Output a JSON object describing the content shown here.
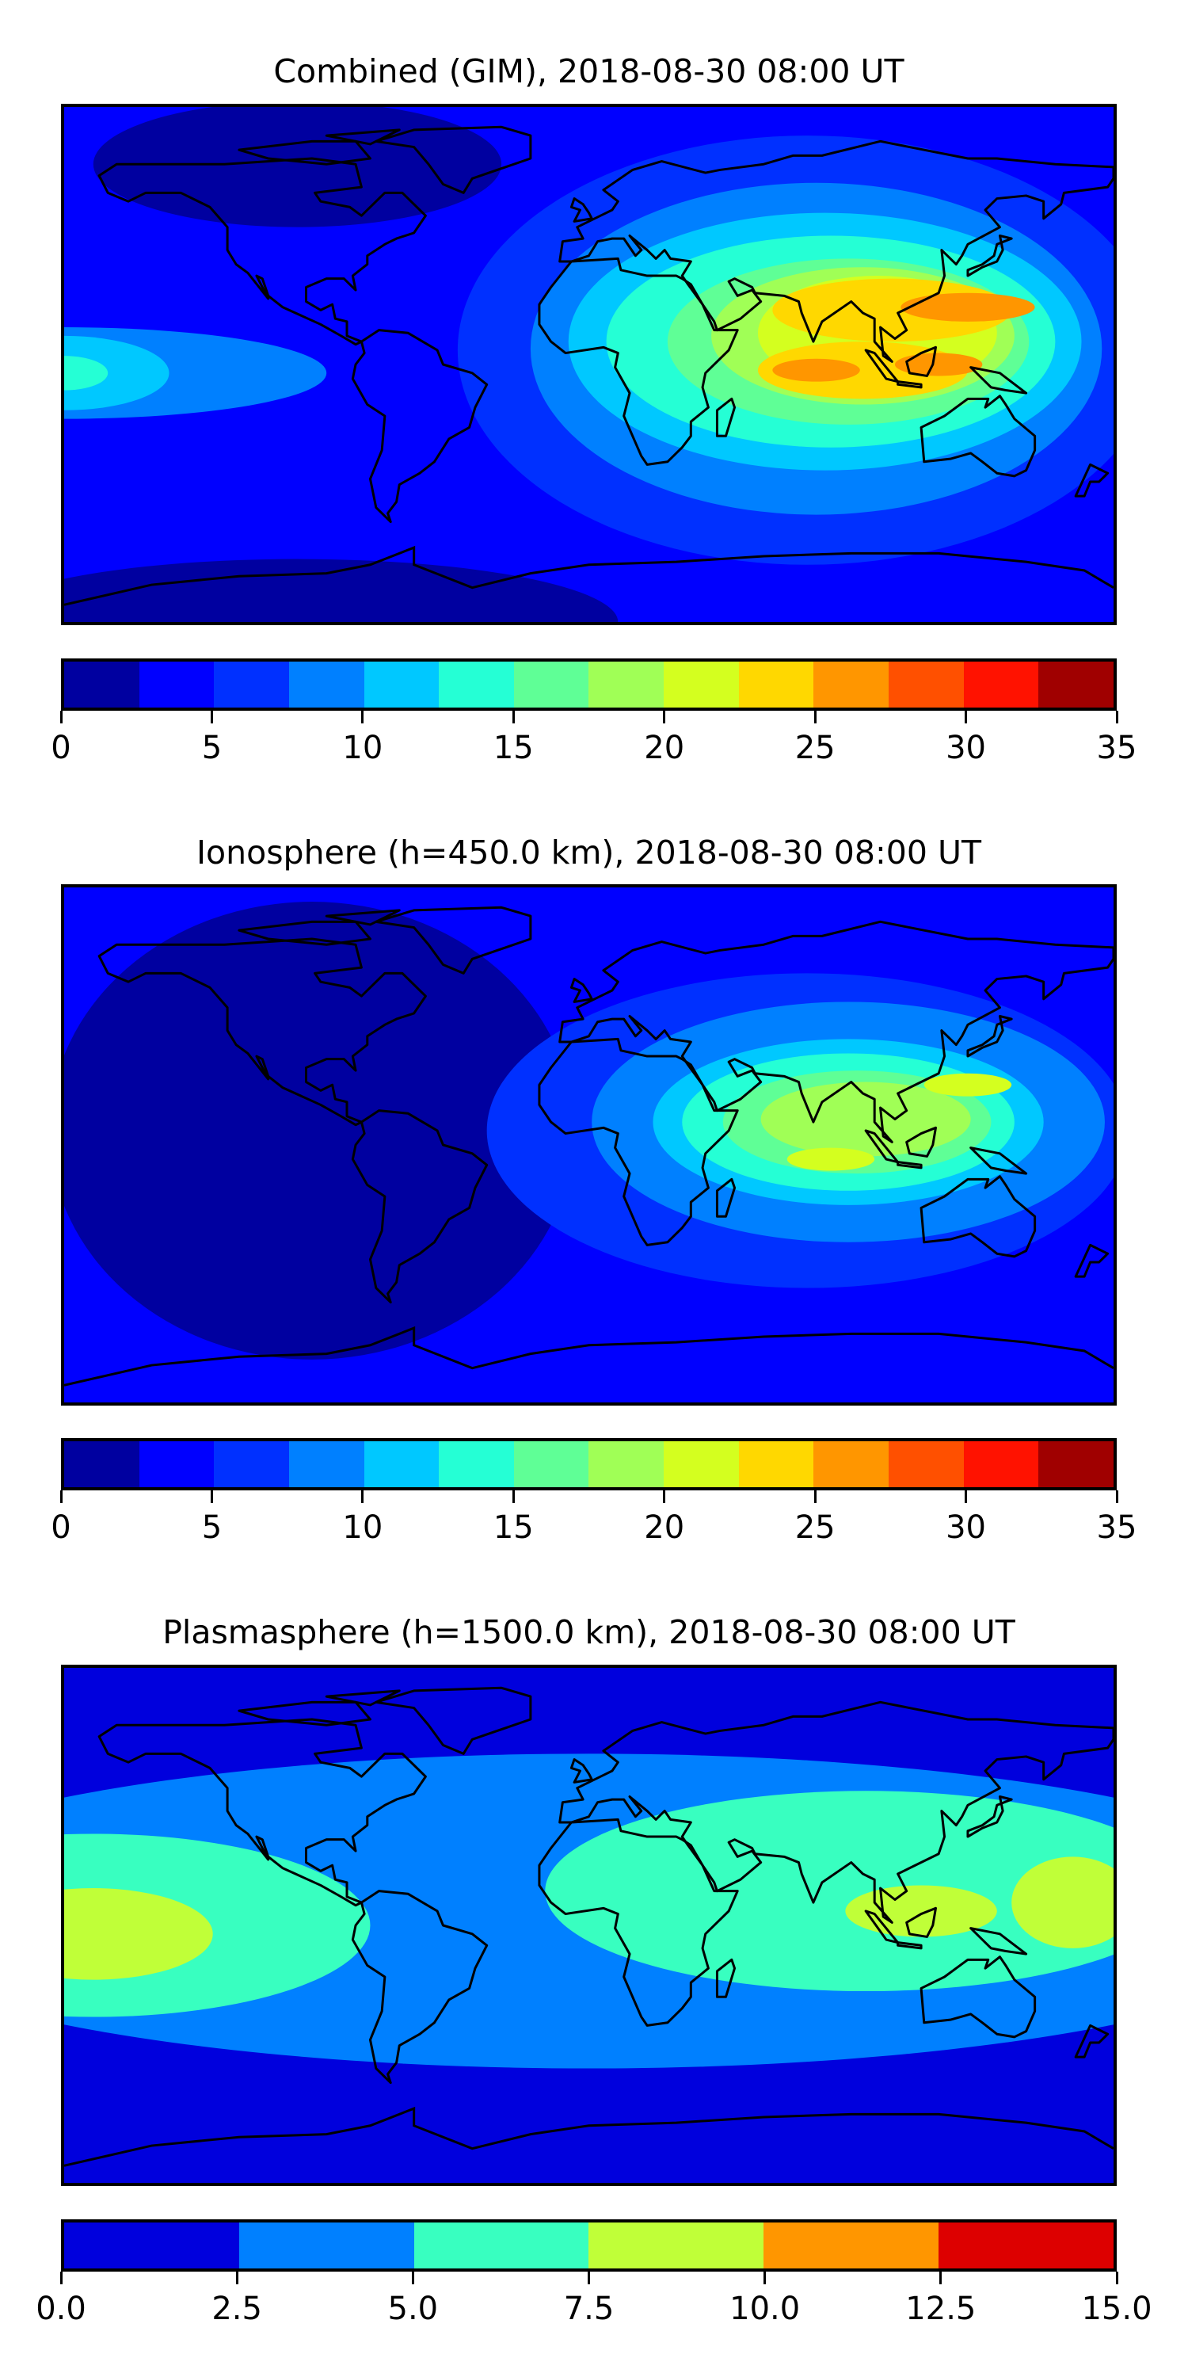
{
  "chart_data": [
    {
      "type": "heatmap",
      "title": "Combined (GIM), 2018-08-30 08:00 UT",
      "projection": "equirectangular",
      "xlim": [
        -180,
        180
      ],
      "ylim": [
        -90,
        90
      ],
      "levels": {
        "min": 0,
        "max": 35,
        "step": 2.5
      },
      "colors": [
        "#0000a0",
        "#0000ff",
        "#0030ff",
        "#0080ff",
        "#00c8ff",
        "#25ffd5",
        "#5fff96",
        "#a0ff56",
        "#d4ff1f",
        "#ffd800",
        "#ff9600",
        "#ff5000",
        "#ff1200",
        "#a00000"
      ],
      "ticks": [
        "0",
        "5",
        "10",
        "15",
        "20",
        "25",
        "30",
        "35"
      ],
      "tick_values": [
        0,
        5,
        10,
        15,
        20,
        25,
        30,
        35
      ],
      "background_level": 1,
      "features": [
        {
          "level": 0,
          "lon": -100,
          "lat": 70,
          "rlon": 70,
          "rlat": 22
        },
        {
          "level": 0,
          "lon": -100,
          "lat": -90,
          "rlon": 110,
          "rlat": 22
        },
        {
          "level": 2,
          "lon": 75,
          "lat": 5,
          "rlon": 120,
          "rlat": 75
        },
        {
          "level": 3,
          "lon": -180,
          "lat": -3,
          "rlon": 90,
          "rlat": 16
        },
        {
          "level": 4,
          "lon": -180,
          "lat": -3,
          "rlon": 36,
          "rlat": 13
        },
        {
          "level": 5,
          "lon": -180,
          "lat": -3,
          "rlon": 15,
          "rlat": 6
        },
        {
          "level": 3,
          "lon": 78,
          "lat": 5.5,
          "rlon": 98,
          "rlat": 58
        },
        {
          "level": 4,
          "lon": 81,
          "lat": 8,
          "rlon": 88,
          "rlat": 45
        },
        {
          "level": 5,
          "lon": 83,
          "lat": 8,
          "rlon": 77,
          "rlat": 37
        },
        {
          "level": 6,
          "lon": 89,
          "lat": 8,
          "rlon": 62,
          "rlat": 29
        },
        {
          "level": 7,
          "lon": 94,
          "lat": 10,
          "rlon": 52,
          "rlat": 24
        },
        {
          "level": 8,
          "lon": 99,
          "lat": 11,
          "rlon": 41,
          "rlat": 20
        },
        {
          "level": 9,
          "lon": 104,
          "lat": 19,
          "rlon": 41,
          "rlat": 11
        },
        {
          "level": 9,
          "lon": 94,
          "lat": -2,
          "rlon": 36,
          "rlat": 10
        },
        {
          "level": 10,
          "lon": 130,
          "lat": 20,
          "rlon": 23,
          "rlat": 5
        },
        {
          "level": 10,
          "lon": 78,
          "lat": -2,
          "rlon": 15,
          "rlat": 4
        },
        {
          "level": 10,
          "lon": 120,
          "lat": 0,
          "rlon": 15,
          "rlat": 4
        }
      ]
    },
    {
      "type": "heatmap",
      "title": "Ionosphere  (h=450.0 km), 2018-08-30 08:00 UT",
      "projection": "equirectangular",
      "xlim": [
        -180,
        180
      ],
      "ylim": [
        -90,
        90
      ],
      "levels": {
        "min": 0,
        "max": 35,
        "step": 2.5
      },
      "colors": [
        "#0000a0",
        "#0000ff",
        "#0030ff",
        "#0080ff",
        "#00c8ff",
        "#25ffd5",
        "#5fff96",
        "#a0ff56",
        "#d4ff1f",
        "#ffd800",
        "#ff9600",
        "#ff5000",
        "#ff1200",
        "#a00000"
      ],
      "ticks": [
        "0",
        "5",
        "10",
        "15",
        "20",
        "25",
        "30",
        "35"
      ],
      "tick_values": [
        0,
        5,
        10,
        15,
        20,
        25,
        30,
        35
      ],
      "background_level": 1,
      "features": [
        {
          "level": 0,
          "lon": -95,
          "lat": 5,
          "rlon": 90,
          "rlat": 80
        },
        {
          "level": 2,
          "lon": 75,
          "lat": 5,
          "rlon": 110,
          "rlat": 55
        },
        {
          "level": 3,
          "lon": 89,
          "lat": 8,
          "rlon": 88,
          "rlat": 42
        },
        {
          "level": 4,
          "lon": 89,
          "lat": 8,
          "rlon": 67,
          "rlat": 29
        },
        {
          "level": 5,
          "lon": 89,
          "lat": 8,
          "rlon": 57,
          "rlat": 24
        },
        {
          "level": 6,
          "lon": 92,
          "lat": 8,
          "rlon": 46,
          "rlat": 18
        },
        {
          "level": 7,
          "lon": 95,
          "lat": 9,
          "rlon": 36,
          "rlat": 13
        },
        {
          "level": 8,
          "lon": 130,
          "lat": 21,
          "rlon": 15,
          "rlat": 4
        },
        {
          "level": 8,
          "lon": 83,
          "lat": -5,
          "rlon": 15,
          "rlat": 4
        }
      ]
    },
    {
      "type": "heatmap",
      "title": "Plasmasphere (h=1500.0 km), 2018-08-30 08:00 UT",
      "projection": "equirectangular",
      "xlim": [
        -180,
        180
      ],
      "ylim": [
        -90,
        90
      ],
      "levels": {
        "min": 0,
        "max": 15,
        "step": 2.5
      },
      "colors": [
        "#0000dd",
        "#0080ff",
        "#38ffc0",
        "#c0ff38",
        "#ff9600",
        "#dd0000"
      ],
      "ticks": [
        "0.0",
        "2.5",
        "5.0",
        "7.5",
        "10.0",
        "12.5",
        "15.0"
      ],
      "tick_values": [
        0,
        2.5,
        5,
        7.5,
        10,
        12.5,
        15
      ],
      "background_level": 0,
      "features": [
        {
          "level": 1,
          "lon": 0,
          "lat": 5,
          "rlon": 260,
          "rlat": 55
        },
        {
          "level": 2,
          "lon": 95,
          "lat": 12,
          "rlon": 110,
          "rlat": 35
        },
        {
          "level": 2,
          "lon": -170,
          "lat": 0,
          "rlon": 95,
          "rlat": 32
        },
        {
          "level": 3,
          "lon": -170,
          "lat": -3,
          "rlon": 41,
          "rlat": 16
        },
        {
          "level": 3,
          "lon": 114,
          "lat": 5,
          "rlon": 26,
          "rlat": 9
        },
        {
          "level": 3,
          "lon": 166,
          "lat": 8,
          "rlon": 21,
          "rlat": 16
        }
      ]
    }
  ]
}
